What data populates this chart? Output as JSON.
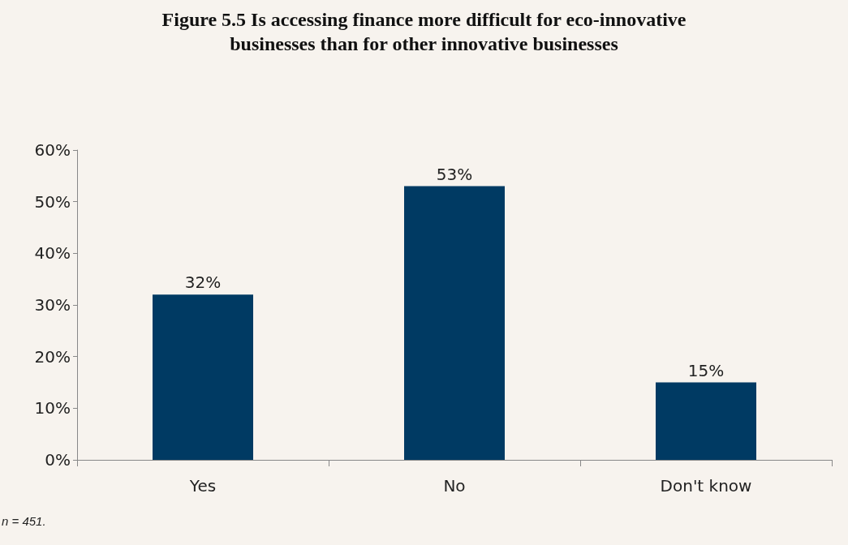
{
  "chart_data": {
    "type": "bar",
    "title": "Figure 5.5 Is accessing finance more difficult for eco-innovative\nbusinesses than for other innovative businesses",
    "categories": [
      "Yes",
      "No",
      "Don't know"
    ],
    "values": [
      32,
      53,
      15
    ],
    "color": "#003a63",
    "value_labels": [
      "32%",
      "53%",
      "15%"
    ],
    "ylim": [
      0,
      60
    ],
    "yticks": [
      {
        "value": 0,
        "label": "0%"
      },
      {
        "value": 10,
        "label": "10%"
      },
      {
        "value": 20,
        "label": "20%"
      },
      {
        "value": 30,
        "label": "30%"
      },
      {
        "value": 40,
        "label": "40%"
      },
      {
        "value": 50,
        "label": "50%"
      },
      {
        "value": 60,
        "label": "60%"
      }
    ],
    "grid": false,
    "annotations": [
      "n = 451."
    ]
  }
}
